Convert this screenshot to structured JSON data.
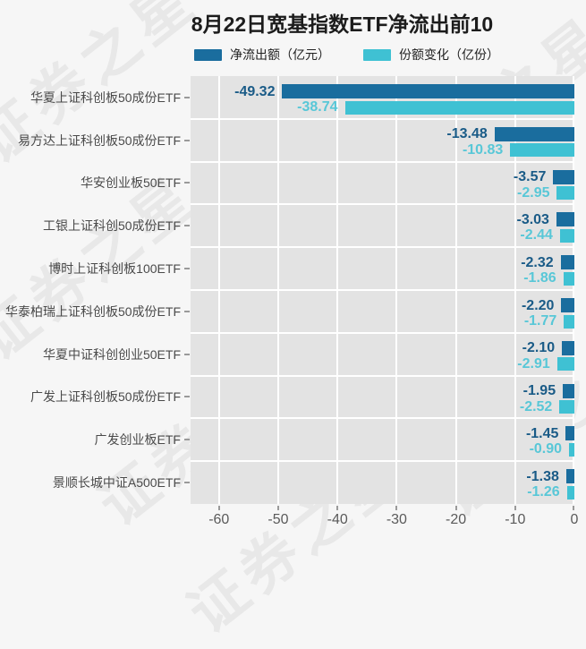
{
  "page": {
    "title": "8月22日宽基指数ETF净流出前10"
  },
  "legend": {
    "items": [
      {
        "label": "净流出额（亿元）",
        "color": "#1a6d9e"
      },
      {
        "label": "份额变化（亿份）",
        "color": "#3fc1d3"
      }
    ]
  },
  "watermark": {
    "text": "证券之星"
  },
  "chart_data": {
    "type": "bar",
    "orientation": "horizontal",
    "title": "8月22日宽基指数ETF净流出前10",
    "categories": [
      "华夏上证科创板50成份ETF",
      "易方达上证科创板50成份ETF",
      "华安创业板50ETF",
      "工银上证科创50成份ETF",
      "博时上证科创板100ETF",
      "华泰柏瑞上证科创板50成份ETF",
      "华夏中证科创创业50ETF",
      "广发上证科创板50成份ETF",
      "广发创业板ETF",
      "景顺长城中证A500ETF"
    ],
    "series": [
      {
        "name": "净流出额（亿元）",
        "color": "#1a6d9e",
        "label_color": "#1a5b87",
        "values": [
          -49.32,
          -13.48,
          -3.57,
          -3.03,
          -2.32,
          -2.2,
          -2.1,
          -1.95,
          -1.45,
          -1.38
        ]
      },
      {
        "name": "份额变化（亿份）",
        "color": "#3fc1d3",
        "label_color": "#58c7d7",
        "values": [
          -38.74,
          -10.83,
          -2.95,
          -2.44,
          -1.86,
          -1.77,
          -2.91,
          -2.52,
          -0.9,
          -1.26
        ]
      }
    ],
    "xlim": [
      -64.8,
      0
    ],
    "xticks": [
      -60,
      -50,
      -40,
      -30,
      -20,
      -10,
      0
    ],
    "grid": true,
    "legend_position": "top",
    "value_labels": true,
    "plot_bg": "#e3e3e3",
    "page_bg": "#f6f6f6"
  }
}
